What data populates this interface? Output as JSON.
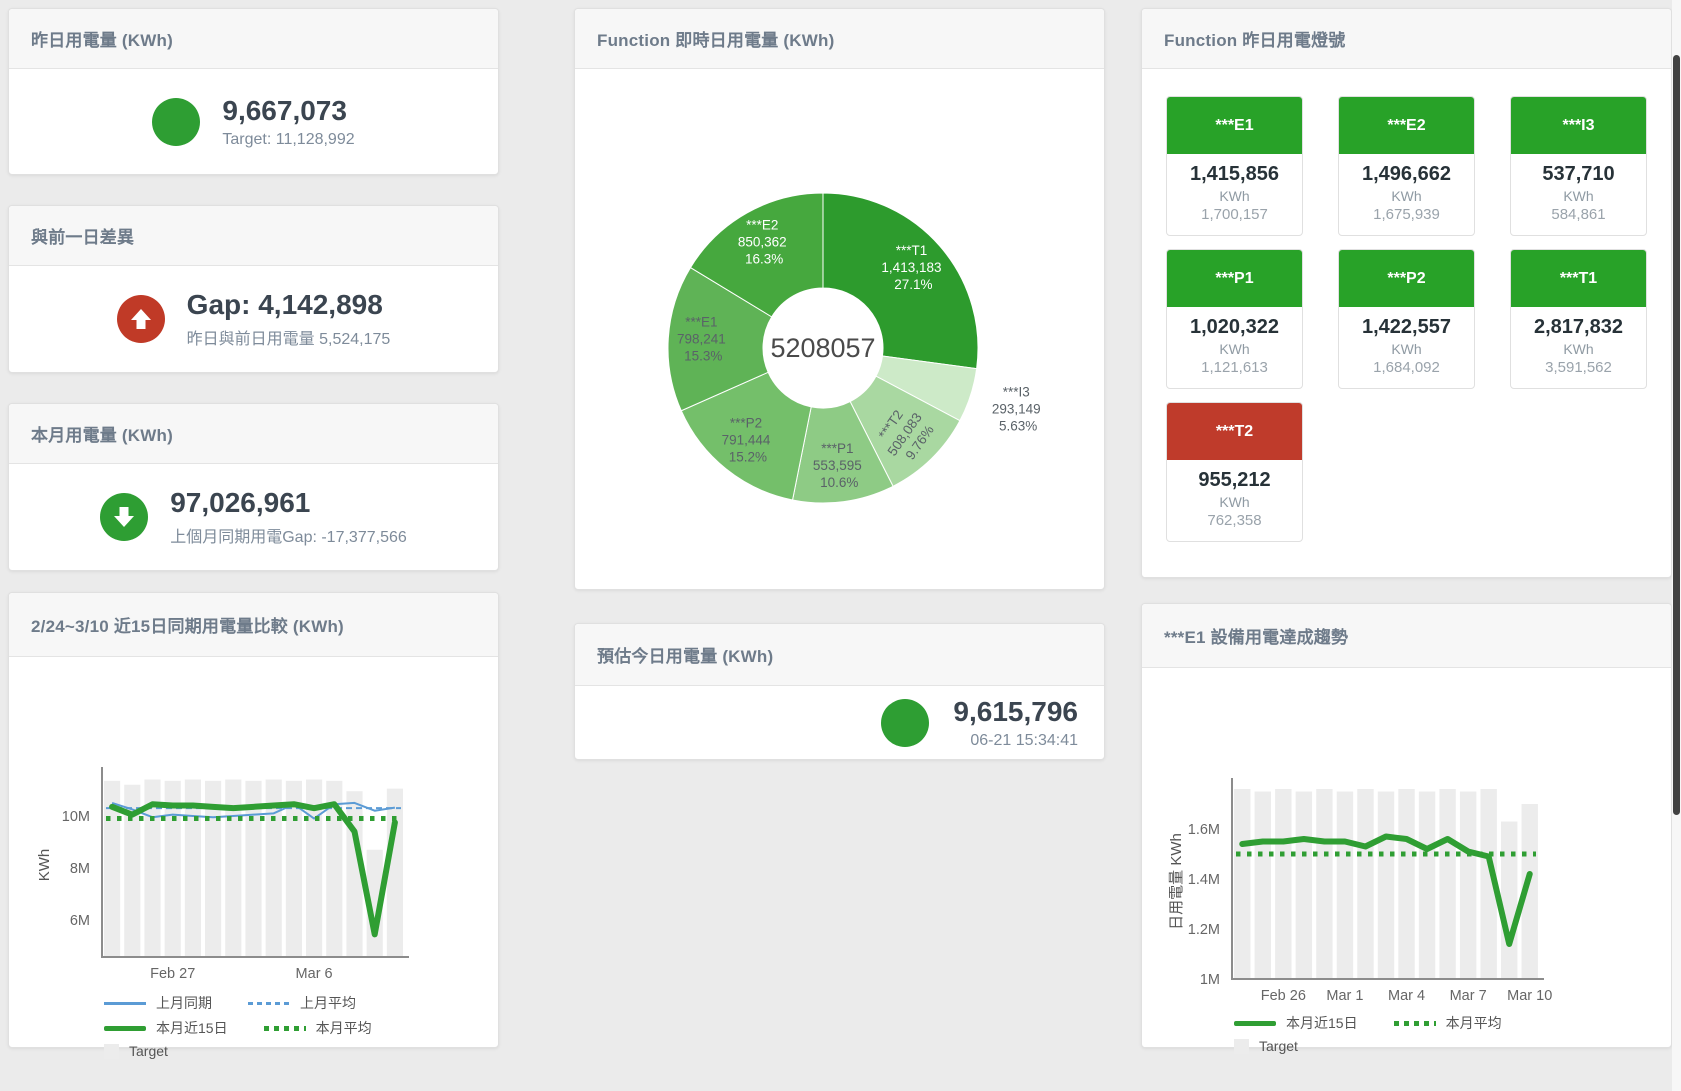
{
  "colors": {
    "green": "#2e9e33",
    "red": "#c03a27",
    "tile_green": "#28a228",
    "tile_red": "#bf3b2b",
    "bar_gray": "#ececec",
    "blue_line": "#5b9bd5",
    "green_line": "#2f9e33"
  },
  "cards": {
    "yesterday": {
      "title": "昨日用電量 (KWh)",
      "value": "9,667,073",
      "subtitle": "Target: 11,128,992"
    },
    "day_gap": {
      "title": "與前一日差異",
      "value": "Gap: 4,142,898",
      "subtitle": "昨日與前日用電量 5,524,175"
    },
    "month": {
      "title": "本月用電量 (KWh)",
      "value": "97,026,961",
      "subtitle": "上個月同期用電Gap: -17,377,566"
    },
    "realtime_donut": {
      "title": "Function 即時日用電量 (KWh)"
    },
    "today_estimate": {
      "title": "預估今日用電量 (KWh)",
      "value": "9,615,796",
      "subtitle": "06-21 15:34:41"
    },
    "lights": {
      "title": "Function 昨日用電燈號",
      "unit": "KWh",
      "tiles": [
        {
          "label": "***E1",
          "value": "1,415,856",
          "target": "1,700,157",
          "status": "green"
        },
        {
          "label": "***E2",
          "value": "1,496,662",
          "target": "1,675,939",
          "status": "green"
        },
        {
          "label": "***I3",
          "value": "537,710",
          "target": "584,861",
          "status": "green"
        },
        {
          "label": "***P1",
          "value": "1,020,322",
          "target": "1,121,613",
          "status": "green"
        },
        {
          "label": "***P2",
          "value": "1,422,557",
          "target": "1,684,092",
          "status": "green"
        },
        {
          "label": "***T1",
          "value": "2,817,832",
          "target": "3,591,562",
          "status": "green"
        },
        {
          "label": "***T2",
          "value": "955,212",
          "target": "762,358",
          "status": "red"
        }
      ]
    },
    "compare15": {
      "title": "2/24~3/10 近15日同期用電量比較 (KWh)"
    },
    "e1_trend": {
      "title": "***E1 設備用電達成趨勢"
    }
  },
  "chart_data": [
    {
      "id": "realtime_function_pie",
      "type": "pie",
      "title": "Function 即時日用電量 (KWh)",
      "center_label": "5208057",
      "slices": [
        {
          "name": "***T1",
          "value": "1,413,183",
          "pct": 27.1,
          "pct_label": "27.1%",
          "color": "#2d9b2d",
          "text": "#ffffff"
        },
        {
          "name": "***I3",
          "value": "293,149",
          "pct": 5.63,
          "pct_label": "5.63%",
          "color": "#cdeac8",
          "text": "#5a6268",
          "label": "outside"
        },
        {
          "name": "***T2",
          "value": "508,083",
          "pct": 9.76,
          "pct_label": "9.76%",
          "color": "#a9d8a1",
          "text": "#5a6268",
          "rotate": -55
        },
        {
          "name": "***P1",
          "value": "553,595",
          "pct": 10.6,
          "pct_label": "10.6%",
          "color": "#8ecb85",
          "text": "#5a6268"
        },
        {
          "name": "***P2",
          "value": "791,444",
          "pct": 15.2,
          "pct_label": "15.2%",
          "color": "#74bf6a",
          "text": "#5a6268"
        },
        {
          "name": "***E1",
          "value": "798,241",
          "pct": 15.3,
          "pct_label": "15.3%",
          "color": "#5fb356",
          "text": "#5a6268"
        },
        {
          "name": "***E2",
          "value": "850,362",
          "pct": 16.3,
          "pct_label": "16.3%",
          "color": "#46a83e",
          "text": "#ffffff"
        }
      ]
    },
    {
      "id": "compare_15day",
      "type": "line",
      "title": "2/24~3/10 近15日同期用電量比較 (KWh)",
      "ylabel": "KWh",
      "ylim": [
        4.58,
        11.65
      ],
      "yticks": [
        {
          "v": 6,
          "label": "6M"
        },
        {
          "v": 8,
          "label": "8M"
        },
        {
          "v": 10,
          "label": "10M"
        }
      ],
      "categories": [
        "2/24",
        "2/25",
        "2/26",
        "2/27",
        "2/28",
        "3/1",
        "3/2",
        "3/3",
        "3/4",
        "3/5",
        "3/6",
        "3/7",
        "3/8",
        "3/9",
        "3/10"
      ],
      "xticks": [
        {
          "index": 3,
          "label": "Feb 27"
        },
        {
          "index": 10,
          "label": "Mar 6"
        }
      ],
      "bars": {
        "name": "Target",
        "color": "#ececec",
        "values": [
          11.35,
          11.2,
          11.4,
          11.35,
          11.4,
          11.35,
          11.4,
          11.35,
          11.4,
          11.35,
          11.4,
          11.35,
          10.95,
          8.7,
          11.05
        ]
      },
      "series": [
        {
          "name": "上月同期",
          "style": "solid",
          "width": 2,
          "color": "#5b9bd5",
          "values": [
            10.5,
            10.25,
            9.95,
            10.05,
            10.0,
            9.95,
            10.0,
            10.05,
            10.1,
            10.45,
            9.9,
            10.45,
            10.5,
            10.2,
            10.32
          ]
        },
        {
          "name": "上月平均",
          "style": "dashed",
          "width": 2,
          "color": "#5b9bd5",
          "values": 10.3
        },
        {
          "name": "本月平均",
          "style": "dotted",
          "width": 5,
          "color": "#2f9e33",
          "values": 9.9
        },
        {
          "name": "本月近15日",
          "style": "solid",
          "width": 6,
          "color": "#2f9e33",
          "values": [
            10.35,
            10.05,
            10.45,
            10.4,
            10.4,
            10.35,
            10.3,
            10.35,
            10.4,
            10.45,
            10.3,
            10.45,
            9.4,
            5.45,
            9.75
          ]
        }
      ],
      "legend": [
        [
          {
            "label": "上月同期",
            "swatch": "line",
            "color": "#5b9bd5"
          },
          {
            "label": "上月平均",
            "swatch": "dashed",
            "color": "#5b9bd5"
          }
        ],
        [
          {
            "label": "本月近15日",
            "swatch": "thick",
            "color": "#2f9e33"
          },
          {
            "label": "本月平均",
            "swatch": "dotted",
            "color": "#2f9e33"
          }
        ],
        [
          {
            "label": "Target",
            "swatch": "box",
            "color": "#ececec"
          }
        ]
      ]
    },
    {
      "id": "e1_trend",
      "type": "line",
      "title": "***E1 設備用電達成趨勢",
      "ylabel": "日用電量 KWh",
      "ylim": [
        1.0,
        1.78
      ],
      "yticks": [
        {
          "v": 1,
          "label": "1M"
        },
        {
          "v": 1.2,
          "label": "1.2M"
        },
        {
          "v": 1.4,
          "label": "1.4M"
        },
        {
          "v": 1.6,
          "label": "1.6M"
        }
      ],
      "categories": [
        "2/24",
        "2/25",
        "2/26",
        "2/27",
        "2/28",
        "3/1",
        "3/2",
        "3/3",
        "3/4",
        "3/5",
        "3/6",
        "3/7",
        "3/8",
        "3/9",
        "3/10"
      ],
      "xticks": [
        {
          "index": 2,
          "label": "Feb 26"
        },
        {
          "index": 5,
          "label": "Mar 1"
        },
        {
          "index": 8,
          "label": "Mar 4"
        },
        {
          "index": 11,
          "label": "Mar 7"
        },
        {
          "index": 14,
          "label": "Mar 10"
        }
      ],
      "bars": {
        "name": "Target",
        "color": "#ececec",
        "values": [
          1.76,
          1.75,
          1.76,
          1.75,
          1.76,
          1.75,
          1.76,
          1.75,
          1.76,
          1.75,
          1.76,
          1.75,
          1.76,
          1.63,
          1.7
        ]
      },
      "series": [
        {
          "name": "本月平均",
          "style": "dotted",
          "width": 5,
          "color": "#2f9e33",
          "values": 1.5
        },
        {
          "name": "本月近15日",
          "style": "solid",
          "width": 6,
          "color": "#2f9e33",
          "values": [
            1.54,
            1.55,
            1.55,
            1.56,
            1.55,
            1.55,
            1.53,
            1.57,
            1.56,
            1.52,
            1.56,
            1.51,
            1.49,
            1.14,
            1.42
          ]
        }
      ],
      "legend": [
        [
          {
            "label": "本月近15日",
            "swatch": "thick",
            "color": "#2f9e33"
          },
          {
            "label": "本月平均",
            "swatch": "dotted",
            "color": "#2f9e33"
          }
        ],
        [
          {
            "label": "Target",
            "swatch": "box",
            "color": "#ececec"
          }
        ]
      ]
    }
  ]
}
